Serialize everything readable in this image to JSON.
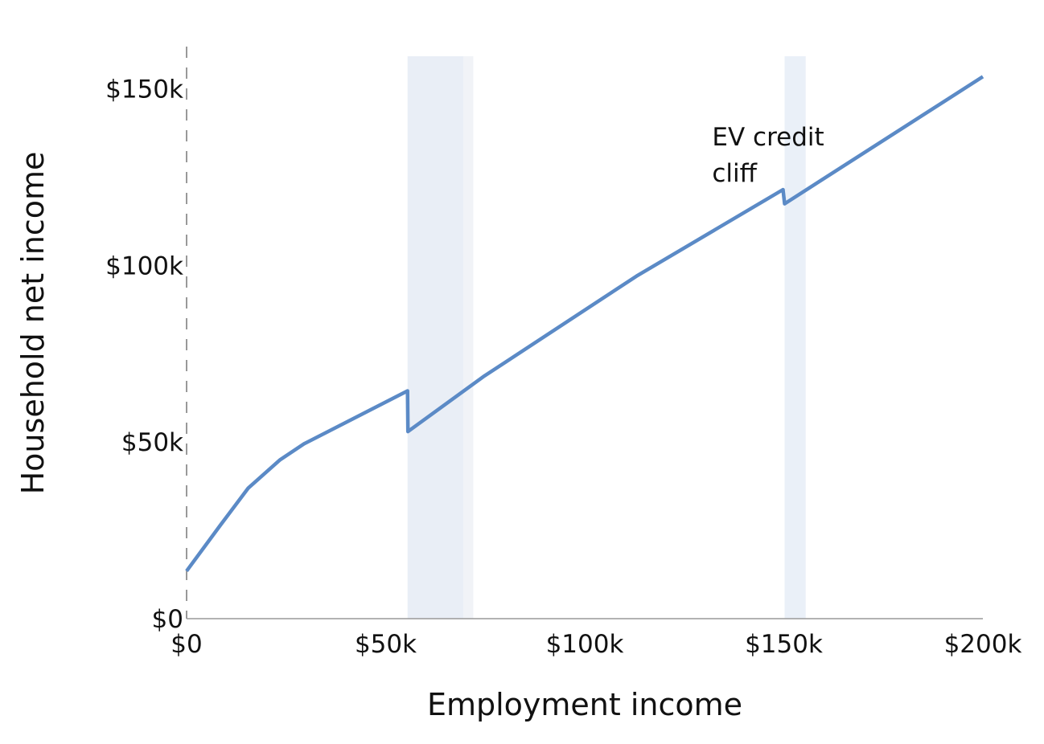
{
  "chart_data": {
    "type": "line",
    "title": "",
    "xlabel": "Employment income",
    "ylabel": "Household net income",
    "xlim": [
      0,
      200000
    ],
    "ylim": [
      0,
      162000
    ],
    "x_ticks": [
      {
        "value": 0,
        "label": "$0"
      },
      {
        "value": 50000,
        "label": "$50k"
      },
      {
        "value": 100000,
        "label": "$100k"
      },
      {
        "value": 150000,
        "label": "$150k"
      },
      {
        "value": 200000,
        "label": "$200k"
      }
    ],
    "y_ticks": [
      {
        "value": 0,
        "label": "$0"
      },
      {
        "value": 50000,
        "label": "$50k"
      },
      {
        "value": 100000,
        "label": "$100k"
      },
      {
        "value": 150000,
        "label": "$150k"
      }
    ],
    "grid": false,
    "colors": {
      "line": "#5b8ac6",
      "shade_primary": "#e9eef6",
      "shade_secondary": "#f1f3f7",
      "axis": "#999999"
    },
    "shaded_regions": [
      {
        "x_start": 55500,
        "x_end": 69500,
        "color": "#e9eef6"
      },
      {
        "x_start": 69500,
        "x_end": 72000,
        "color": "#f1f3f7"
      },
      {
        "x_start": 150200,
        "x_end": 155500,
        "color": "#eaf0f8"
      }
    ],
    "series": [
      {
        "points": [
          [
            0,
            13500
          ],
          [
            8500,
            26500
          ],
          [
            15500,
            37000
          ],
          [
            23500,
            45000
          ],
          [
            29500,
            49500
          ],
          [
            55500,
            64500
          ],
          [
            55600,
            53000
          ],
          [
            74500,
            68500
          ],
          [
            113000,
            97000
          ],
          [
            149800,
            121500
          ],
          [
            150200,
            117500
          ],
          [
            200000,
            153500
          ]
        ]
      }
    ],
    "annotations": [
      {
        "lines": [
          "EV credit",
          "cliff"
        ],
        "x": 132000,
        "y": 134000
      }
    ]
  }
}
